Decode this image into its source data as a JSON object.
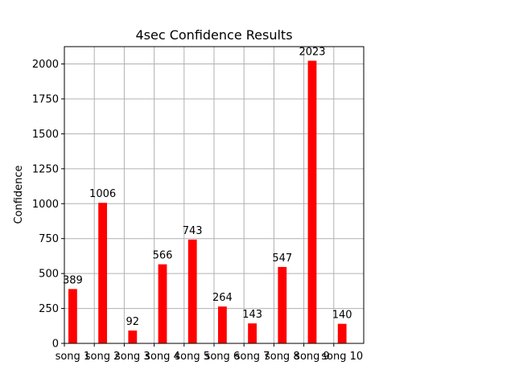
{
  "chart_data": {
    "type": "bar",
    "title": "4sec Confidence Results",
    "xlabel": "",
    "ylabel": "Confidence",
    "categories": [
      "song 1",
      "song 2",
      "song 3",
      "song 4",
      "song 5",
      "song 6",
      "song 7",
      "song 8",
      "song 9",
      "song 10"
    ],
    "values": [
      389,
      1006,
      92,
      566,
      743,
      264,
      143,
      547,
      2023,
      140
    ],
    "ylim": [
      0,
      2124
    ],
    "yticks": [
      0,
      250,
      500,
      750,
      1000,
      1250,
      1500,
      1750,
      2000
    ],
    "grid": true,
    "bar_color": "#ff0000"
  }
}
